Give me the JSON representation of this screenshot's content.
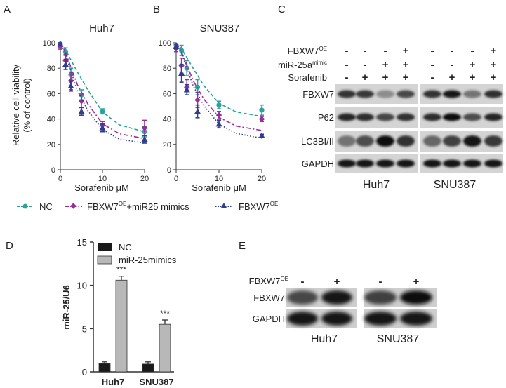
{
  "panels": {
    "A": {
      "label": "A",
      "title": "Huh7"
    },
    "B": {
      "label": "B",
      "title": "SNU387"
    },
    "C": {
      "label": "C"
    },
    "D": {
      "label": "D"
    },
    "E": {
      "label": "E"
    }
  },
  "viability_axes": {
    "ylabel1": "Relative cell viability",
    "ylabel2": "(% of control)",
    "xlabel": "Sorafenib μM",
    "yticks": [
      "0",
      "20",
      "40",
      "60",
      "80",
      "100"
    ],
    "xticks": [
      "0",
      "10",
      "20"
    ]
  },
  "legend_AB": {
    "nc": "NC",
    "combo_main": "FBXW7",
    "combo_sup": "OE",
    "combo_suffix": "+miR25 mimics",
    "oe_main": "FBXW7",
    "oe_sup": "OE"
  },
  "chart_data": [
    {
      "type": "line",
      "panel": "A",
      "title": "Huh7",
      "xlabel": "Sorafenib μM",
      "ylabel": "Relative cell viability (% of control)",
      "xlim": [
        0,
        20
      ],
      "ylim": [
        0,
        100
      ],
      "series": [
        {
          "name": "NC",
          "color": "#2aa39a",
          "dash": "dashed",
          "marker": "circle",
          "x": [
            0,
            1.25,
            2.5,
            5,
            10,
            20
          ],
          "y": [
            99,
            93,
            75,
            59,
            46,
            30
          ],
          "err": [
            1,
            3,
            5,
            4,
            2,
            4
          ],
          "fit": [
            100,
            94.4,
            86.5,
            77.3,
            63.0,
            45.5,
            35.4,
            29.9
          ]
        },
        {
          "name": "FBXW7OE+miR25 mimics",
          "color": "#9b2d9b",
          "dash": "dashdot",
          "marker": "diamond",
          "x": [
            0,
            1.25,
            2.5,
            5,
            10,
            20
          ],
          "y": [
            97,
            86,
            70,
            54,
            35,
            33
          ],
          "err": [
            2,
            5,
            7,
            5,
            3,
            6
          ],
          "fit": [
            100,
            92.4,
            80.8,
            67.3,
            52.0,
            36.3,
            28.4,
            24.6
          ]
        },
        {
          "name": "FBXW7OE",
          "color": "#2e3d8f",
          "dash": "dotted",
          "marker": "triangle",
          "x": [
            0,
            1.25,
            2.5,
            5,
            10,
            20
          ],
          "y": [
            99,
            83,
            66,
            46,
            33,
            24
          ],
          "err": [
            1,
            4,
            4,
            3,
            3,
            3
          ],
          "fit": [
            100,
            91.0,
            77.6,
            62.7,
            46.7,
            31.7,
            24.2,
            21.0
          ]
        }
      ]
    },
    {
      "type": "line",
      "panel": "B",
      "title": "SNU387",
      "xlabel": "Sorafenib μM",
      "ylabel": "Relative cell viability (% of control)",
      "xlim": [
        0,
        20
      ],
      "ylim": [
        0,
        100
      ],
      "series": [
        {
          "name": "NC",
          "color": "#2aa39a",
          "dash": "dashed",
          "marker": "circle",
          "x": [
            0,
            1.25,
            2.5,
            5,
            10,
            20
          ],
          "y": [
            98,
            94,
            80,
            65,
            51,
            47
          ],
          "err": [
            1,
            4,
            6,
            6,
            3,
            4
          ],
          "fit": [
            100,
            95.3,
            88.3,
            79.8,
            66.2,
            52.4,
            45.6,
            42.0
          ]
        },
        {
          "name": "FBXW7OE+miR25 mimics",
          "color": "#9b2d9b",
          "dash": "dashdot",
          "marker": "diamond",
          "x": [
            0,
            1.25,
            2.5,
            5,
            10,
            20
          ],
          "y": [
            96,
            82,
            65,
            55,
            43,
            40
          ],
          "err": [
            3,
            6,
            6,
            6,
            3,
            2
          ],
          "fit": [
            100,
            93.0,
            82.5,
            70.0,
            55.6,
            41.3,
            34.5,
            31.0
          ]
        },
        {
          "name": "FBXW7OE",
          "color": "#2e3d8f",
          "dash": "dotted",
          "marker": "triangle",
          "x": [
            0,
            1.25,
            2.5,
            5,
            10,
            20
          ],
          "y": [
            97,
            76,
            63,
            46,
            36,
            27
          ],
          "err": [
            2,
            7,
            4,
            5,
            3,
            1
          ],
          "fit": [
            100,
            92.0,
            79.8,
            66.0,
            50.5,
            36.0,
            28.7,
            24.9
          ]
        }
      ]
    },
    {
      "type": "bar",
      "panel": "D",
      "ylabel": "miR-25/U6",
      "ylim": [
        0,
        15
      ],
      "yticks": [
        "0",
        "5",
        "10",
        "15"
      ],
      "categories": [
        "Huh7",
        "SNU387"
      ],
      "series": [
        {
          "name": "NC",
          "color": "#1a1a1a",
          "values": [
            0.95,
            0.9
          ],
          "err": [
            0.2,
            0.25
          ]
        },
        {
          "name": "miR-25mimics",
          "color": "#b8b8b8",
          "values": [
            10.6,
            5.5
          ],
          "err": [
            0.45,
            0.5
          ]
        }
      ],
      "annotations": [
        "***",
        "***"
      ]
    }
  ],
  "blotC": {
    "rows": [
      {
        "label_main": "FBXW7",
        "label_sup": "OE",
        "huh7": [
          "-",
          "-",
          "-",
          "+"
        ],
        "snu": [
          "-",
          "-",
          "-",
          "+"
        ]
      },
      {
        "label_main": "miR-25a",
        "label_sup": "mimic",
        "huh7": [
          "-",
          "-",
          "+",
          "+"
        ],
        "snu": [
          "-",
          "-",
          "+",
          "+"
        ]
      },
      {
        "label_main": "Sorafenib",
        "label_sup": "",
        "huh7": [
          "-",
          "+",
          "+",
          "+"
        ],
        "snu": [
          "-",
          "+",
          "+",
          "+"
        ]
      }
    ],
    "bands": [
      "FBXW7",
      "P62",
      "LC3BI/II",
      "GAPDH"
    ],
    "cell_lines": [
      "Huh7",
      "SNU387"
    ]
  },
  "blotE": {
    "row_main": "FBXW7",
    "row_sup": "OE",
    "huh7": [
      "-",
      "+"
    ],
    "snu": [
      "-",
      "+"
    ],
    "bands": [
      "FBXW7",
      "GAPDH"
    ],
    "cell_lines": [
      "Huh7",
      "SNU387"
    ]
  }
}
